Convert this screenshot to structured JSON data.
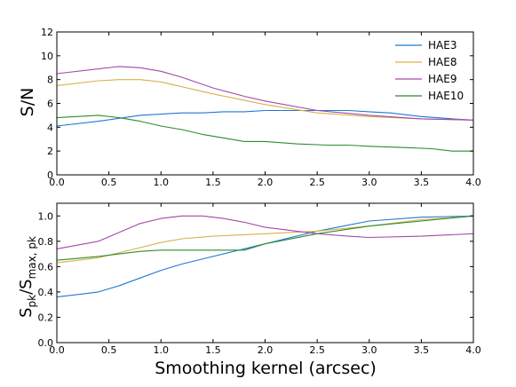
{
  "chart_data": [
    {
      "type": "line",
      "title": "",
      "xlabel": "",
      "ylabel": "S/N",
      "xlim": [
        0.0,
        4.0
      ],
      "ylim": [
        0,
        12
      ],
      "xticks": [
        "0.0",
        "0.5",
        "1.0",
        "1.5",
        "2.0",
        "2.5",
        "3.0",
        "3.5",
        "4.0"
      ],
      "yticks": [
        "0",
        "2",
        "4",
        "6",
        "8",
        "10",
        "12"
      ],
      "grid": false,
      "legend": "top-right",
      "series": [
        {
          "name": "HAE3",
          "color": "#1f77d4",
          "x": [
            0.0,
            0.4,
            0.8,
            1.2,
            1.4,
            1.6,
            1.8,
            2.0,
            2.2,
            2.5,
            2.8,
            3.0,
            3.2,
            3.5,
            3.8,
            4.0
          ],
          "y": [
            4.1,
            4.5,
            5.0,
            5.2,
            5.2,
            5.3,
            5.3,
            5.4,
            5.4,
            5.4,
            5.4,
            5.3,
            5.2,
            4.9,
            4.7,
            4.6
          ]
        },
        {
          "name": "HAE8",
          "color": "#d9b04a",
          "x": [
            0.0,
            0.4,
            0.6,
            0.8,
            1.0,
            1.2,
            1.5,
            2.0,
            2.5,
            3.0,
            3.5,
            4.0
          ],
          "y": [
            7.5,
            7.9,
            8.0,
            8.0,
            7.8,
            7.4,
            6.8,
            5.9,
            5.2,
            4.9,
            4.7,
            4.6
          ]
        },
        {
          "name": "HAE9",
          "color": "#a04aa8",
          "x": [
            0.0,
            0.4,
            0.6,
            0.8,
            1.0,
            1.2,
            1.5,
            1.8,
            2.0,
            2.5,
            3.0,
            3.5,
            4.0
          ],
          "y": [
            8.5,
            8.9,
            9.1,
            9.0,
            8.7,
            8.2,
            7.3,
            6.6,
            6.2,
            5.4,
            5.0,
            4.7,
            4.6
          ]
        },
        {
          "name": "HAE10",
          "color": "#2e8b2e",
          "x": [
            0.0,
            0.4,
            0.6,
            0.8,
            1.0,
            1.2,
            1.4,
            1.6,
            1.8,
            2.0,
            2.3,
            2.6,
            2.8,
            3.0,
            3.3,
            3.6,
            3.8,
            4.0
          ],
          "y": [
            4.8,
            5.0,
            4.8,
            4.5,
            4.1,
            3.8,
            3.4,
            3.1,
            2.8,
            2.8,
            2.6,
            2.5,
            2.5,
            2.4,
            2.3,
            2.2,
            2.0,
            2.0
          ]
        }
      ]
    },
    {
      "type": "line",
      "title": "",
      "xlabel": "Smoothing kernel (arcsec)",
      "ylabel": "S_pk/S_max, pk",
      "xlim": [
        0.0,
        4.0
      ],
      "ylim": [
        0.0,
        1.1
      ],
      "xticks": [
        "0.0",
        "0.5",
        "1.0",
        "1.5",
        "2.0",
        "2.5",
        "3.0",
        "3.5",
        "4.0"
      ],
      "yticks": [
        "0.0",
        "0.2",
        "0.4",
        "0.6",
        "0.8",
        "1.0"
      ],
      "grid": false,
      "series": [
        {
          "name": "HAE3",
          "color": "#1f77d4",
          "x": [
            0.0,
            0.2,
            0.4,
            0.6,
            0.8,
            1.0,
            1.2,
            1.5,
            2.0,
            2.5,
            3.0,
            3.5,
            4.0
          ],
          "y": [
            0.36,
            0.38,
            0.4,
            0.45,
            0.51,
            0.57,
            0.62,
            0.68,
            0.78,
            0.88,
            0.96,
            0.99,
            1.0
          ]
        },
        {
          "name": "HAE8",
          "color": "#d9b04a",
          "x": [
            0.0,
            0.4,
            0.8,
            1.0,
            1.2,
            1.5,
            2.0,
            2.5,
            3.0,
            3.5,
            4.0
          ],
          "y": [
            0.63,
            0.67,
            0.75,
            0.79,
            0.82,
            0.84,
            0.86,
            0.88,
            0.92,
            0.97,
            1.0
          ]
        },
        {
          "name": "HAE9",
          "color": "#a04aa8",
          "x": [
            0.0,
            0.4,
            0.6,
            0.8,
            1.0,
            1.2,
            1.4,
            1.6,
            1.8,
            2.0,
            2.5,
            2.8,
            3.0,
            3.5,
            4.0
          ],
          "y": [
            0.74,
            0.8,
            0.87,
            0.94,
            0.98,
            1.0,
            1.0,
            0.98,
            0.95,
            0.91,
            0.86,
            0.84,
            0.83,
            0.84,
            0.86
          ]
        },
        {
          "name": "HAE10",
          "color": "#2e8b2e",
          "x": [
            0.0,
            0.4,
            0.8,
            1.0,
            1.2,
            1.5,
            1.8,
            2.0,
            2.5,
            3.0,
            3.5,
            4.0
          ],
          "y": [
            0.65,
            0.68,
            0.72,
            0.73,
            0.73,
            0.73,
            0.73,
            0.78,
            0.86,
            0.92,
            0.96,
            1.0
          ]
        }
      ]
    }
  ]
}
